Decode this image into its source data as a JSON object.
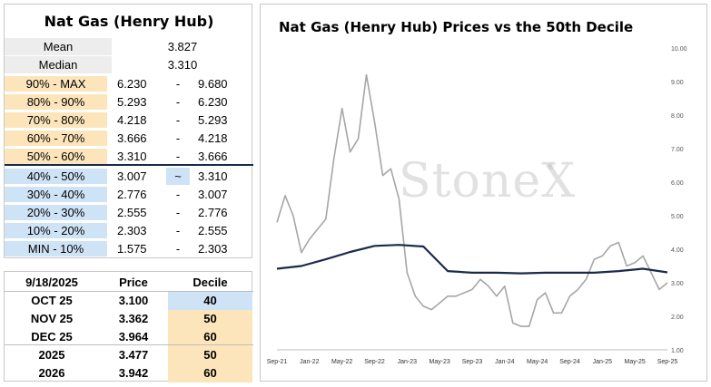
{
  "decile_table": {
    "title": "Nat Gas (Henry Hub)",
    "mean": {
      "label": "Mean",
      "value": "3.827"
    },
    "median": {
      "label": "Median",
      "value": "3.310"
    },
    "rows": [
      {
        "label": "90% - MAX",
        "low": "6.230",
        "dash": "-",
        "high": "9.680",
        "band": "upper"
      },
      {
        "label": "80% - 90%",
        "low": "5.293",
        "dash": "-",
        "high": "6.230",
        "band": "upper"
      },
      {
        "label": "70% - 80%",
        "low": "4.218",
        "dash": "-",
        "high": "5.293",
        "band": "upper"
      },
      {
        "label": "60% - 70%",
        "low": "3.666",
        "dash": "-",
        "high": "4.218",
        "band": "upper"
      },
      {
        "label": "50% - 60%",
        "low": "3.310",
        "dash": "-",
        "high": "3.666",
        "band": "upper"
      },
      {
        "label": "40% - 50%",
        "low": "3.007",
        "dash": "~",
        "high": "3.310",
        "band": "lower",
        "current": true
      },
      {
        "label": "30% - 40%",
        "low": "2.776",
        "dash": "-",
        "high": "3.007",
        "band": "lower"
      },
      {
        "label": "20% - 30%",
        "low": "2.555",
        "dash": "-",
        "high": "2.776",
        "band": "lower"
      },
      {
        "label": "10% - 20%",
        "low": "2.303",
        "dash": "-",
        "high": "2.555",
        "band": "lower"
      },
      {
        "label": "MIN - 10%",
        "low": "1.575",
        "dash": "-",
        "high": "2.303",
        "band": "lower"
      }
    ]
  },
  "price_table": {
    "header": {
      "date": "9/18/2025",
      "price": "Price",
      "decile": "Decile"
    },
    "rows": [
      {
        "contract": "OCT 25",
        "price": "3.100",
        "decile": "40"
      },
      {
        "contract": "NOV 25",
        "price": "3.362",
        "decile": "50"
      },
      {
        "contract": "DEC 25",
        "price": "3.964",
        "decile": "60"
      },
      {
        "contract": "2025",
        "price": "3.477",
        "decile": "50"
      },
      {
        "contract": "2026",
        "price": "3.942",
        "decile": "60"
      }
    ]
  },
  "colors": {
    "upper_band": "#fde5bb",
    "lower_band": "#cfe3f7",
    "price_line": "#a6a6a6",
    "decile_line": "#1b2a4a",
    "divider": "#1b2a4a"
  },
  "watermark": {
    "text": "StoneX",
    "mark": "®"
  },
  "chart_data": {
    "type": "line",
    "title": "Nat Gas (Henry Hub) Prices vs the 50th Decile",
    "xlabel": "",
    "ylabel": "",
    "ylim": [
      1.0,
      10.0
    ],
    "yticks": [
      "1.00",
      "2.00",
      "3.00",
      "4.00",
      "5.00",
      "6.00",
      "7.00",
      "8.00",
      "9.00",
      "10.00"
    ],
    "xticks": [
      "Sep-21",
      "Jan-22",
      "May-22",
      "Sep-22",
      "Jan-23",
      "May-23",
      "Sep-23",
      "Jan-24",
      "May-24",
      "Sep-24",
      "Jan-25",
      "May-25",
      "Sep-25"
    ],
    "x_range": [
      "2021-09",
      "2025-09"
    ],
    "grid": false,
    "legend": "none",
    "series": [
      {
        "role": "price",
        "x": [
          "2021-09",
          "2021-10",
          "2021-11",
          "2021-12",
          "2022-01",
          "2022-02",
          "2022-03",
          "2022-04",
          "2022-05",
          "2022-06",
          "2022-07",
          "2022-08",
          "2022-09",
          "2022-10",
          "2022-11",
          "2022-12",
          "2023-01",
          "2023-02",
          "2023-03",
          "2023-04",
          "2023-05",
          "2023-06",
          "2023-07",
          "2023-08",
          "2023-09",
          "2023-10",
          "2023-11",
          "2023-12",
          "2024-01",
          "2024-02",
          "2024-03",
          "2024-04",
          "2024-05",
          "2024-06",
          "2024-07",
          "2024-08",
          "2024-09",
          "2024-10",
          "2024-11",
          "2024-12",
          "2025-01",
          "2025-02",
          "2025-03",
          "2025-04",
          "2025-05",
          "2025-06",
          "2025-07",
          "2025-08",
          "2025-09"
        ],
        "values": [
          4.8,
          5.6,
          5.0,
          3.9,
          4.3,
          4.6,
          4.9,
          6.7,
          8.2,
          6.9,
          7.3,
          9.2,
          7.8,
          6.2,
          6.4,
          5.5,
          3.3,
          2.6,
          2.3,
          2.2,
          2.4,
          2.6,
          2.6,
          2.7,
          2.8,
          3.1,
          2.9,
          2.6,
          2.9,
          1.8,
          1.7,
          1.7,
          2.5,
          2.7,
          2.1,
          2.1,
          2.6,
          2.8,
          3.1,
          3.7,
          3.8,
          4.1,
          4.2,
          3.5,
          3.6,
          3.8,
          3.3,
          2.8,
          3.0
        ]
      },
      {
        "role": "50th decile",
        "x": [
          "2021-09",
          "2021-12",
          "2022-03",
          "2022-06",
          "2022-09",
          "2022-12",
          "2023-03",
          "2023-06",
          "2023-09",
          "2023-12",
          "2024-03",
          "2024-06",
          "2024-09",
          "2024-12",
          "2025-03",
          "2025-06",
          "2025-09"
        ],
        "values": [
          3.42,
          3.5,
          3.7,
          3.92,
          4.1,
          4.13,
          4.08,
          3.35,
          3.3,
          3.3,
          3.28,
          3.3,
          3.3,
          3.3,
          3.35,
          3.42,
          3.31
        ]
      }
    ]
  }
}
